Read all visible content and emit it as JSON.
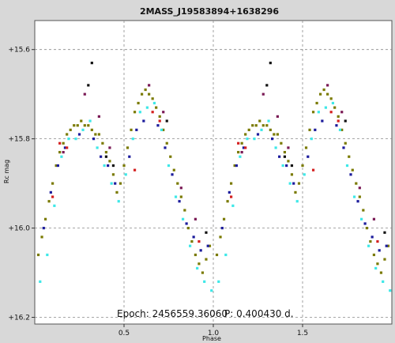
{
  "chart_data": {
    "type": "scatter",
    "title": "2MASS_J19583894+1638296",
    "xlabel": "Phase",
    "ylabel": "Rc mag",
    "xlim": [
      0.0,
      2.0
    ],
    "ylim": [
      16.215,
      15.535
    ],
    "y_inverted": true,
    "grid": true,
    "x_ticks": [
      0.5,
      1.0,
      1.5
    ],
    "x_tick_labels": [
      "0.5",
      "1.0",
      "1.5"
    ],
    "y_ticks": [
      15.6,
      15.8,
      16.0,
      16.2
    ],
    "y_tick_labels": [
      "+15.6",
      "+15.8",
      "+16.0",
      "+16.2"
    ],
    "annotations": {
      "epoch": "Epoch: 2456559.36060",
      "period": "P: 0.400430 d."
    },
    "colors": {
      "background": "#d8d8d8",
      "plot_area": "#ffffff",
      "olive": "#7a7a00",
      "cyan": "#3ee8e8",
      "navy": "#1c1c9c",
      "red": "#d42020",
      "purple": "#7a1a55",
      "black": "#101010"
    },
    "light_curve": {
      "phase_min": 0.0,
      "mag_min": 16.13,
      "phase_max": 0.38,
      "mag_max": 15.75,
      "period_in_plot": 1.0
    },
    "series": [
      {
        "color": "olive",
        "points": [
          [
            0.02,
            16.06
          ],
          [
            0.04,
            16.02
          ],
          [
            0.06,
            15.98
          ],
          [
            0.08,
            15.94
          ],
          [
            0.1,
            15.9
          ],
          [
            0.12,
            15.86
          ],
          [
            0.14,
            15.83
          ],
          [
            0.16,
            15.81
          ],
          [
            0.18,
            15.79
          ],
          [
            0.2,
            15.78
          ],
          [
            0.22,
            15.77
          ],
          [
            0.24,
            15.77
          ],
          [
            0.26,
            15.76
          ],
          [
            0.28,
            15.77
          ],
          [
            0.3,
            15.77
          ],
          [
            0.32,
            15.78
          ],
          [
            0.34,
            15.79
          ],
          [
            0.36,
            15.79
          ],
          [
            0.38,
            15.81
          ],
          [
            0.4,
            15.83
          ],
          [
            0.42,
            15.85
          ],
          [
            0.44,
            15.88
          ],
          [
            0.46,
            15.92
          ],
          [
            0.48,
            15.9
          ],
          [
            0.5,
            15.86
          ],
          [
            0.52,
            15.82
          ],
          [
            0.54,
            15.78
          ],
          [
            0.56,
            15.74
          ],
          [
            0.58,
            15.72
          ],
          [
            0.6,
            15.7
          ],
          [
            0.62,
            15.69
          ],
          [
            0.64,
            15.7
          ],
          [
            0.66,
            15.71
          ],
          [
            0.68,
            15.73
          ],
          [
            0.7,
            15.75
          ],
          [
            0.72,
            15.78
          ],
          [
            0.74,
            15.81
          ],
          [
            0.76,
            15.84
          ],
          [
            0.78,
            15.87
          ],
          [
            0.8,
            15.9
          ],
          [
            0.82,
            15.93
          ],
          [
            0.84,
            15.96
          ],
          [
            0.86,
            16.0
          ],
          [
            0.88,
            16.03
          ],
          [
            0.9,
            16.06
          ],
          [
            0.92,
            16.08
          ],
          [
            0.94,
            16.1
          ],
          [
            0.96,
            16.07
          ],
          [
            0.98,
            16.04
          ],
          [
            1.02,
            16.06
          ],
          [
            1.04,
            16.02
          ],
          [
            1.06,
            15.98
          ],
          [
            1.08,
            15.94
          ],
          [
            1.1,
            15.9
          ],
          [
            1.12,
            15.86
          ],
          [
            1.14,
            15.83
          ],
          [
            1.16,
            15.81
          ],
          [
            1.18,
            15.79
          ],
          [
            1.2,
            15.78
          ],
          [
            1.22,
            15.77
          ],
          [
            1.24,
            15.77
          ],
          [
            1.26,
            15.76
          ],
          [
            1.28,
            15.77
          ],
          [
            1.3,
            15.77
          ],
          [
            1.32,
            15.78
          ],
          [
            1.34,
            15.79
          ],
          [
            1.36,
            15.79
          ],
          [
            1.38,
            15.81
          ],
          [
            1.4,
            15.83
          ],
          [
            1.42,
            15.85
          ],
          [
            1.44,
            15.88
          ],
          [
            1.46,
            15.92
          ],
          [
            1.48,
            15.9
          ],
          [
            1.5,
            15.86
          ],
          [
            1.52,
            15.82
          ],
          [
            1.54,
            15.78
          ],
          [
            1.56,
            15.74
          ],
          [
            1.58,
            15.72
          ],
          [
            1.6,
            15.7
          ],
          [
            1.62,
            15.69
          ],
          [
            1.64,
            15.7
          ],
          [
            1.66,
            15.71
          ],
          [
            1.68,
            15.73
          ],
          [
            1.7,
            15.75
          ],
          [
            1.72,
            15.78
          ],
          [
            1.74,
            15.81
          ],
          [
            1.76,
            15.84
          ],
          [
            1.78,
            15.87
          ],
          [
            1.8,
            15.9
          ],
          [
            1.82,
            15.93
          ],
          [
            1.84,
            15.96
          ],
          [
            1.86,
            16.0
          ],
          [
            1.88,
            16.03
          ],
          [
            1.9,
            16.06
          ],
          [
            1.92,
            16.08
          ],
          [
            1.94,
            16.1
          ],
          [
            1.96,
            16.07
          ],
          [
            1.98,
            16.04
          ]
        ]
      },
      {
        "color": "cyan",
        "points": [
          [
            0.03,
            16.12
          ],
          [
            0.07,
            16.06
          ],
          [
            0.11,
            15.95
          ],
          [
            0.15,
            15.84
          ],
          [
            0.19,
            15.8
          ],
          [
            0.23,
            15.8
          ],
          [
            0.27,
            15.78
          ],
          [
            0.31,
            15.76
          ],
          [
            0.35,
            15.82
          ],
          [
            0.39,
            15.86
          ],
          [
            0.43,
            15.9
          ],
          [
            0.47,
            15.94
          ],
          [
            0.51,
            15.88
          ],
          [
            0.55,
            15.8
          ],
          [
            0.59,
            15.74
          ],
          [
            0.63,
            15.73
          ],
          [
            0.67,
            15.72
          ],
          [
            0.71,
            15.78
          ],
          [
            0.75,
            15.86
          ],
          [
            0.79,
            15.93
          ],
          [
            0.83,
            15.98
          ],
          [
            0.87,
            16.04
          ],
          [
            0.91,
            16.09
          ],
          [
            0.95,
            16.12
          ],
          [
            0.99,
            16.14
          ],
          [
            1.03,
            16.12
          ],
          [
            1.07,
            16.06
          ],
          [
            1.11,
            15.95
          ],
          [
            1.15,
            15.84
          ],
          [
            1.19,
            15.8
          ],
          [
            1.23,
            15.8
          ],
          [
            1.27,
            15.78
          ],
          [
            1.31,
            15.76
          ],
          [
            1.35,
            15.82
          ],
          [
            1.39,
            15.86
          ],
          [
            1.43,
            15.9
          ],
          [
            1.47,
            15.94
          ],
          [
            1.51,
            15.88
          ],
          [
            1.55,
            15.8
          ],
          [
            1.59,
            15.74
          ],
          [
            1.63,
            15.73
          ],
          [
            1.67,
            15.72
          ],
          [
            1.71,
            15.78
          ],
          [
            1.75,
            15.86
          ],
          [
            1.79,
            15.93
          ],
          [
            1.83,
            15.98
          ],
          [
            1.87,
            16.04
          ],
          [
            1.91,
            16.09
          ],
          [
            1.95,
            16.12
          ],
          [
            1.99,
            16.14
          ]
        ]
      },
      {
        "color": "navy",
        "points": [
          [
            0.05,
            16.0
          ],
          [
            0.09,
            15.92
          ],
          [
            0.13,
            15.86
          ],
          [
            0.17,
            15.82
          ],
          [
            0.25,
            15.79
          ],
          [
            0.33,
            15.8
          ],
          [
            0.37,
            15.84
          ],
          [
            0.41,
            15.86
          ],
          [
            0.45,
            15.9
          ],
          [
            0.53,
            15.84
          ],
          [
            0.57,
            15.78
          ],
          [
            0.61,
            15.76
          ],
          [
            0.69,
            15.77
          ],
          [
            0.73,
            15.82
          ],
          [
            0.77,
            15.88
          ],
          [
            0.81,
            15.94
          ],
          [
            0.85,
            15.99
          ],
          [
            0.89,
            16.02
          ],
          [
            0.93,
            16.05
          ],
          [
            0.97,
            16.04
          ],
          [
            1.05,
            16.0
          ],
          [
            1.09,
            15.92
          ],
          [
            1.13,
            15.86
          ],
          [
            1.17,
            15.82
          ],
          [
            1.25,
            15.79
          ],
          [
            1.33,
            15.8
          ],
          [
            1.37,
            15.84
          ],
          [
            1.41,
            15.86
          ],
          [
            1.45,
            15.9
          ],
          [
            1.53,
            15.84
          ],
          [
            1.57,
            15.78
          ],
          [
            1.61,
            15.76
          ],
          [
            1.69,
            15.77
          ],
          [
            1.73,
            15.82
          ],
          [
            1.77,
            15.88
          ],
          [
            1.81,
            15.94
          ],
          [
            1.85,
            15.99
          ],
          [
            1.89,
            16.02
          ],
          [
            1.93,
            16.05
          ],
          [
            1.97,
            16.04
          ]
        ]
      },
      {
        "color": "red",
        "points": [
          [
            0.1,
            15.93
          ],
          [
            0.14,
            15.81
          ],
          [
            0.18,
            15.82
          ],
          [
            0.56,
            15.87
          ],
          [
            0.66,
            15.74
          ],
          [
            0.7,
            15.76
          ],
          [
            0.92,
            16.03
          ],
          [
            1.1,
            15.93
          ],
          [
            1.14,
            15.81
          ],
          [
            1.18,
            15.82
          ],
          [
            1.56,
            15.87
          ],
          [
            1.66,
            15.74
          ],
          [
            1.7,
            15.76
          ],
          [
            1.92,
            16.03
          ]
        ]
      },
      {
        "color": "purple",
        "points": [
          [
            0.16,
            15.83
          ],
          [
            0.28,
            15.7
          ],
          [
            0.36,
            15.75
          ],
          [
            0.42,
            15.82
          ],
          [
            0.64,
            15.68
          ],
          [
            0.72,
            15.74
          ],
          [
            0.82,
            15.91
          ],
          [
            0.9,
            15.98
          ],
          [
            1.16,
            15.83
          ],
          [
            1.28,
            15.7
          ],
          [
            1.36,
            15.75
          ],
          [
            1.42,
            15.82
          ],
          [
            1.64,
            15.68
          ],
          [
            1.72,
            15.74
          ],
          [
            1.82,
            15.91
          ],
          [
            1.9,
            15.98
          ]
        ]
      },
      {
        "color": "black",
        "points": [
          [
            0.3,
            15.68
          ],
          [
            0.32,
            15.63
          ],
          [
            0.4,
            15.84
          ],
          [
            0.44,
            15.86
          ],
          [
            0.74,
            15.76
          ],
          [
            0.96,
            16.01
          ],
          [
            1.3,
            15.68
          ],
          [
            1.32,
            15.63
          ],
          [
            1.4,
            15.84
          ],
          [
            1.44,
            15.86
          ],
          [
            1.74,
            15.76
          ],
          [
            1.96,
            16.01
          ]
        ]
      }
    ]
  }
}
